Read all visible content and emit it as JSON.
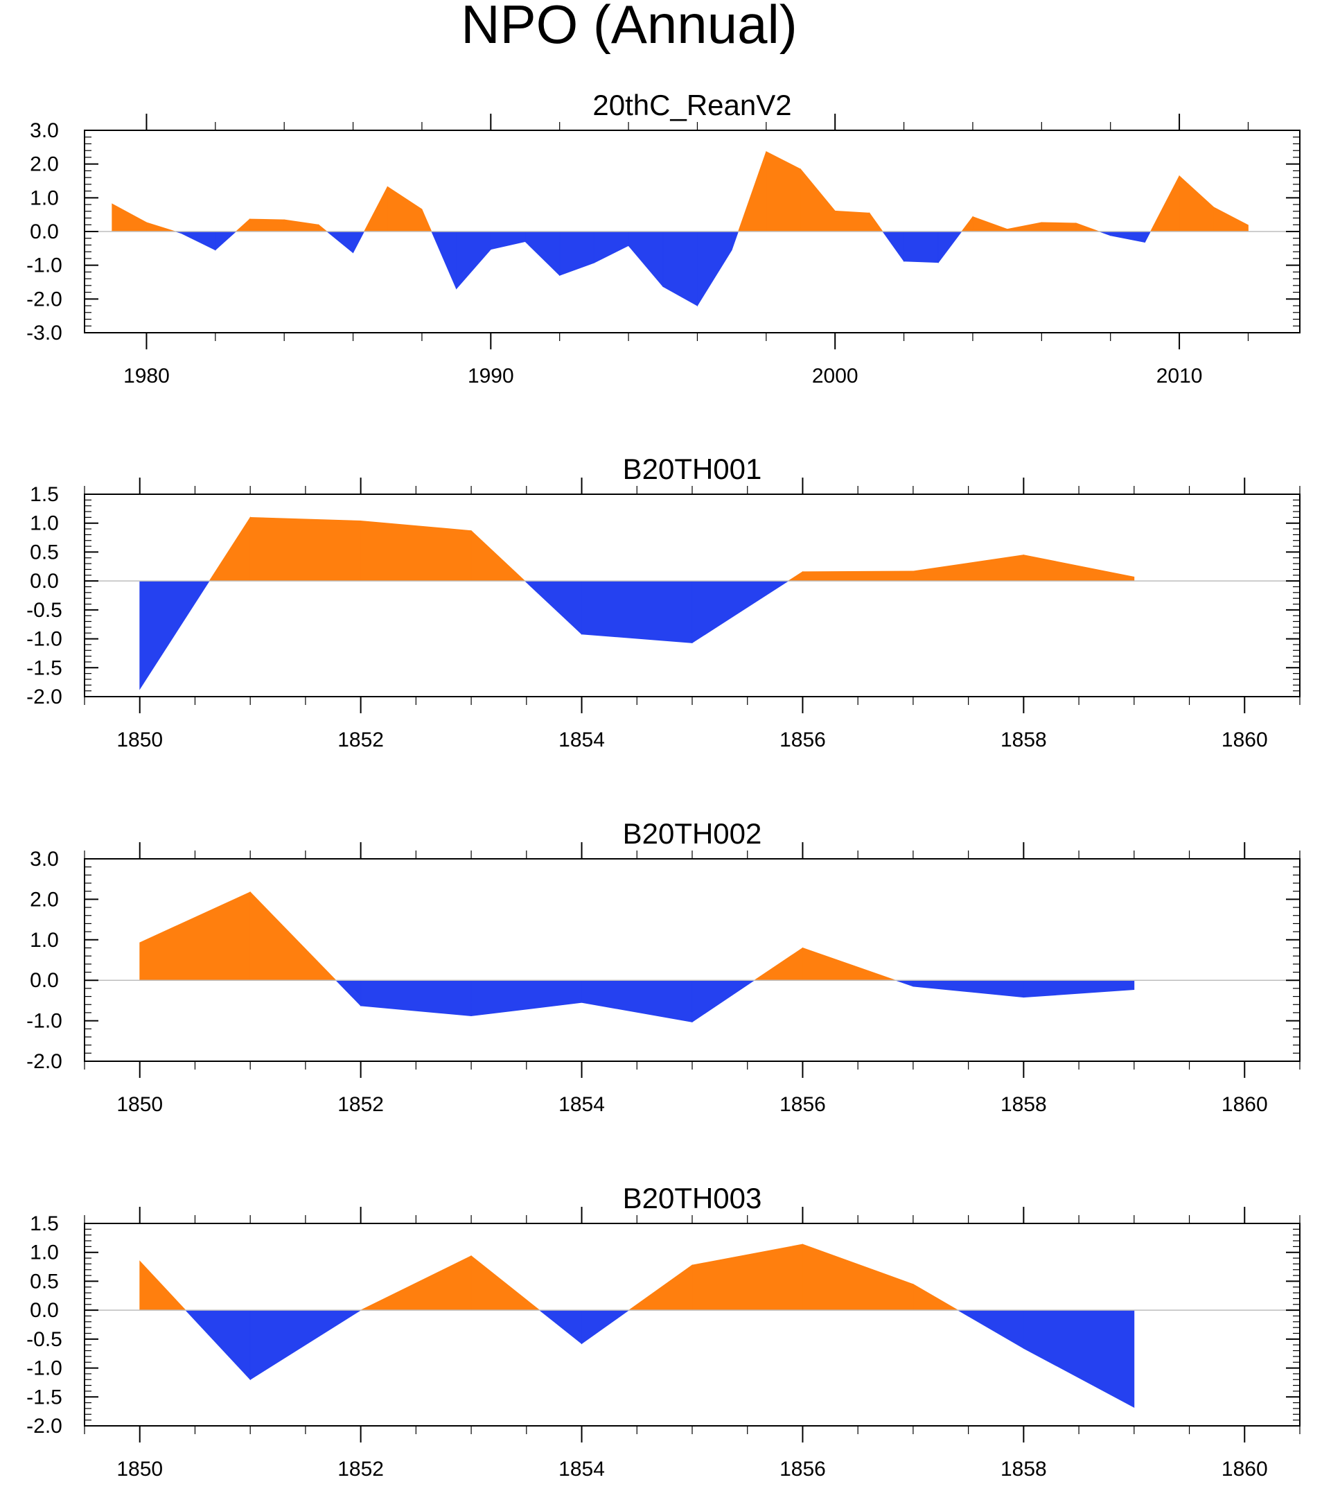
{
  "figure_title": "NPO (Annual)",
  "colors": {
    "positive": "#ff7f0e",
    "negative": "#2541f0",
    "axis": "#000000",
    "zero_line": "#bdbdbd"
  },
  "chart_data": [
    {
      "type": "area",
      "title": "20thC_ReanV2",
      "xlim": [
        1978.2,
        2013.5
      ],
      "ylim": [
        -3.0,
        3.0
      ],
      "yticks": [
        -3.0,
        -2.0,
        -1.0,
        0.0,
        1.0,
        2.0,
        3.0
      ],
      "ytick_labels": [
        "-3.0",
        "-2.0",
        "-1.0",
        "0.0",
        "1.0",
        "2.0",
        "3.0"
      ],
      "xticks": [
        1980,
        1990,
        2000,
        2010
      ],
      "xtick_labels": [
        "1980",
        "1990",
        "2000",
        "2010"
      ],
      "xminor_step": 2,
      "x": [
        1979,
        1980,
        1981,
        1982,
        1983,
        1984,
        1985,
        1986,
        1987,
        1988,
        1989,
        1990,
        1991,
        1992,
        1993,
        1994,
        1995,
        1996,
        1997,
        1998,
        1999,
        2000,
        2001,
        2002,
        2003,
        2004,
        2005,
        2006,
        2007,
        2008,
        2009,
        2010,
        2011,
        2012
      ],
      "values": [
        0.82,
        0.27,
        -0.05,
        -0.55,
        0.37,
        0.35,
        0.2,
        -0.63,
        1.33,
        0.66,
        -1.7,
        -0.53,
        -0.3,
        -1.3,
        -0.93,
        -0.42,
        -1.63,
        -2.2,
        -0.55,
        2.37,
        1.85,
        0.61,
        0.55,
        -0.88,
        -0.92,
        0.44,
        0.07,
        0.27,
        0.25,
        -0.12,
        -0.32,
        1.65,
        0.72,
        0.19
      ]
    },
    {
      "type": "area",
      "title": "B20TH001",
      "xlim": [
        1849.5,
        1860.5
      ],
      "ylim": [
        -2.0,
        1.5
      ],
      "yticks": [
        -2.0,
        -1.5,
        -1.0,
        -0.5,
        0.0,
        0.5,
        1.0,
        1.5
      ],
      "ytick_labels": [
        "-2.0",
        "-1.5",
        "-1.0",
        "-0.5",
        "0.0",
        "0.5",
        "1.0",
        "1.5"
      ],
      "xticks": [
        1850,
        1852,
        1854,
        1856,
        1858,
        1860
      ],
      "xtick_labels": [
        "1850",
        "1852",
        "1854",
        "1856",
        "1858",
        "1860"
      ],
      "xminor_step": 0.5,
      "x": [
        1850,
        1851,
        1852,
        1853,
        1854,
        1855,
        1856,
        1857,
        1858,
        1859
      ],
      "values": [
        -1.87,
        1.1,
        1.04,
        0.87,
        -0.92,
        -1.07,
        0.16,
        0.17,
        0.45,
        0.07
      ]
    },
    {
      "type": "area",
      "title": "B20TH002",
      "xlim": [
        1849.5,
        1860.5
      ],
      "ylim": [
        -2.0,
        3.0
      ],
      "yticks": [
        -2.0,
        -1.0,
        0.0,
        1.0,
        2.0,
        3.0
      ],
      "ytick_labels": [
        "-2.0",
        "-1.0",
        "0.0",
        "1.0",
        "2.0",
        "3.0"
      ],
      "xticks": [
        1850,
        1852,
        1854,
        1856,
        1858,
        1860
      ],
      "xtick_labels": [
        "1850",
        "1852",
        "1854",
        "1856",
        "1858",
        "1860"
      ],
      "xminor_step": 0.5,
      "x": [
        1850,
        1851,
        1852,
        1853,
        1854,
        1855,
        1856,
        1857,
        1858,
        1859
      ],
      "values": [
        0.93,
        2.18,
        -0.63,
        -0.88,
        -0.55,
        -1.03,
        0.8,
        -0.15,
        -0.42,
        -0.23
      ]
    },
    {
      "type": "area",
      "title": "B20TH003",
      "xlim": [
        1849.5,
        1860.5
      ],
      "ylim": [
        -2.0,
        1.5
      ],
      "yticks": [
        -2.0,
        -1.5,
        -1.0,
        -0.5,
        0.0,
        0.5,
        1.0,
        1.5
      ],
      "ytick_labels": [
        "-2.0",
        "-1.5",
        "-1.0",
        "-0.5",
        "0.0",
        "0.5",
        "1.0",
        "1.5"
      ],
      "xticks": [
        1850,
        1852,
        1854,
        1856,
        1858,
        1860
      ],
      "xtick_labels": [
        "1850",
        "1852",
        "1854",
        "1856",
        "1858",
        "1860"
      ],
      "xminor_step": 0.5,
      "x": [
        1850,
        1851,
        1852,
        1853,
        1854,
        1855,
        1856,
        1857,
        1858,
        1859
      ],
      "values": [
        0.85,
        -1.2,
        0.0,
        0.94,
        -0.58,
        0.78,
        1.14,
        0.45,
        -0.66,
        -1.68
      ]
    }
  ]
}
